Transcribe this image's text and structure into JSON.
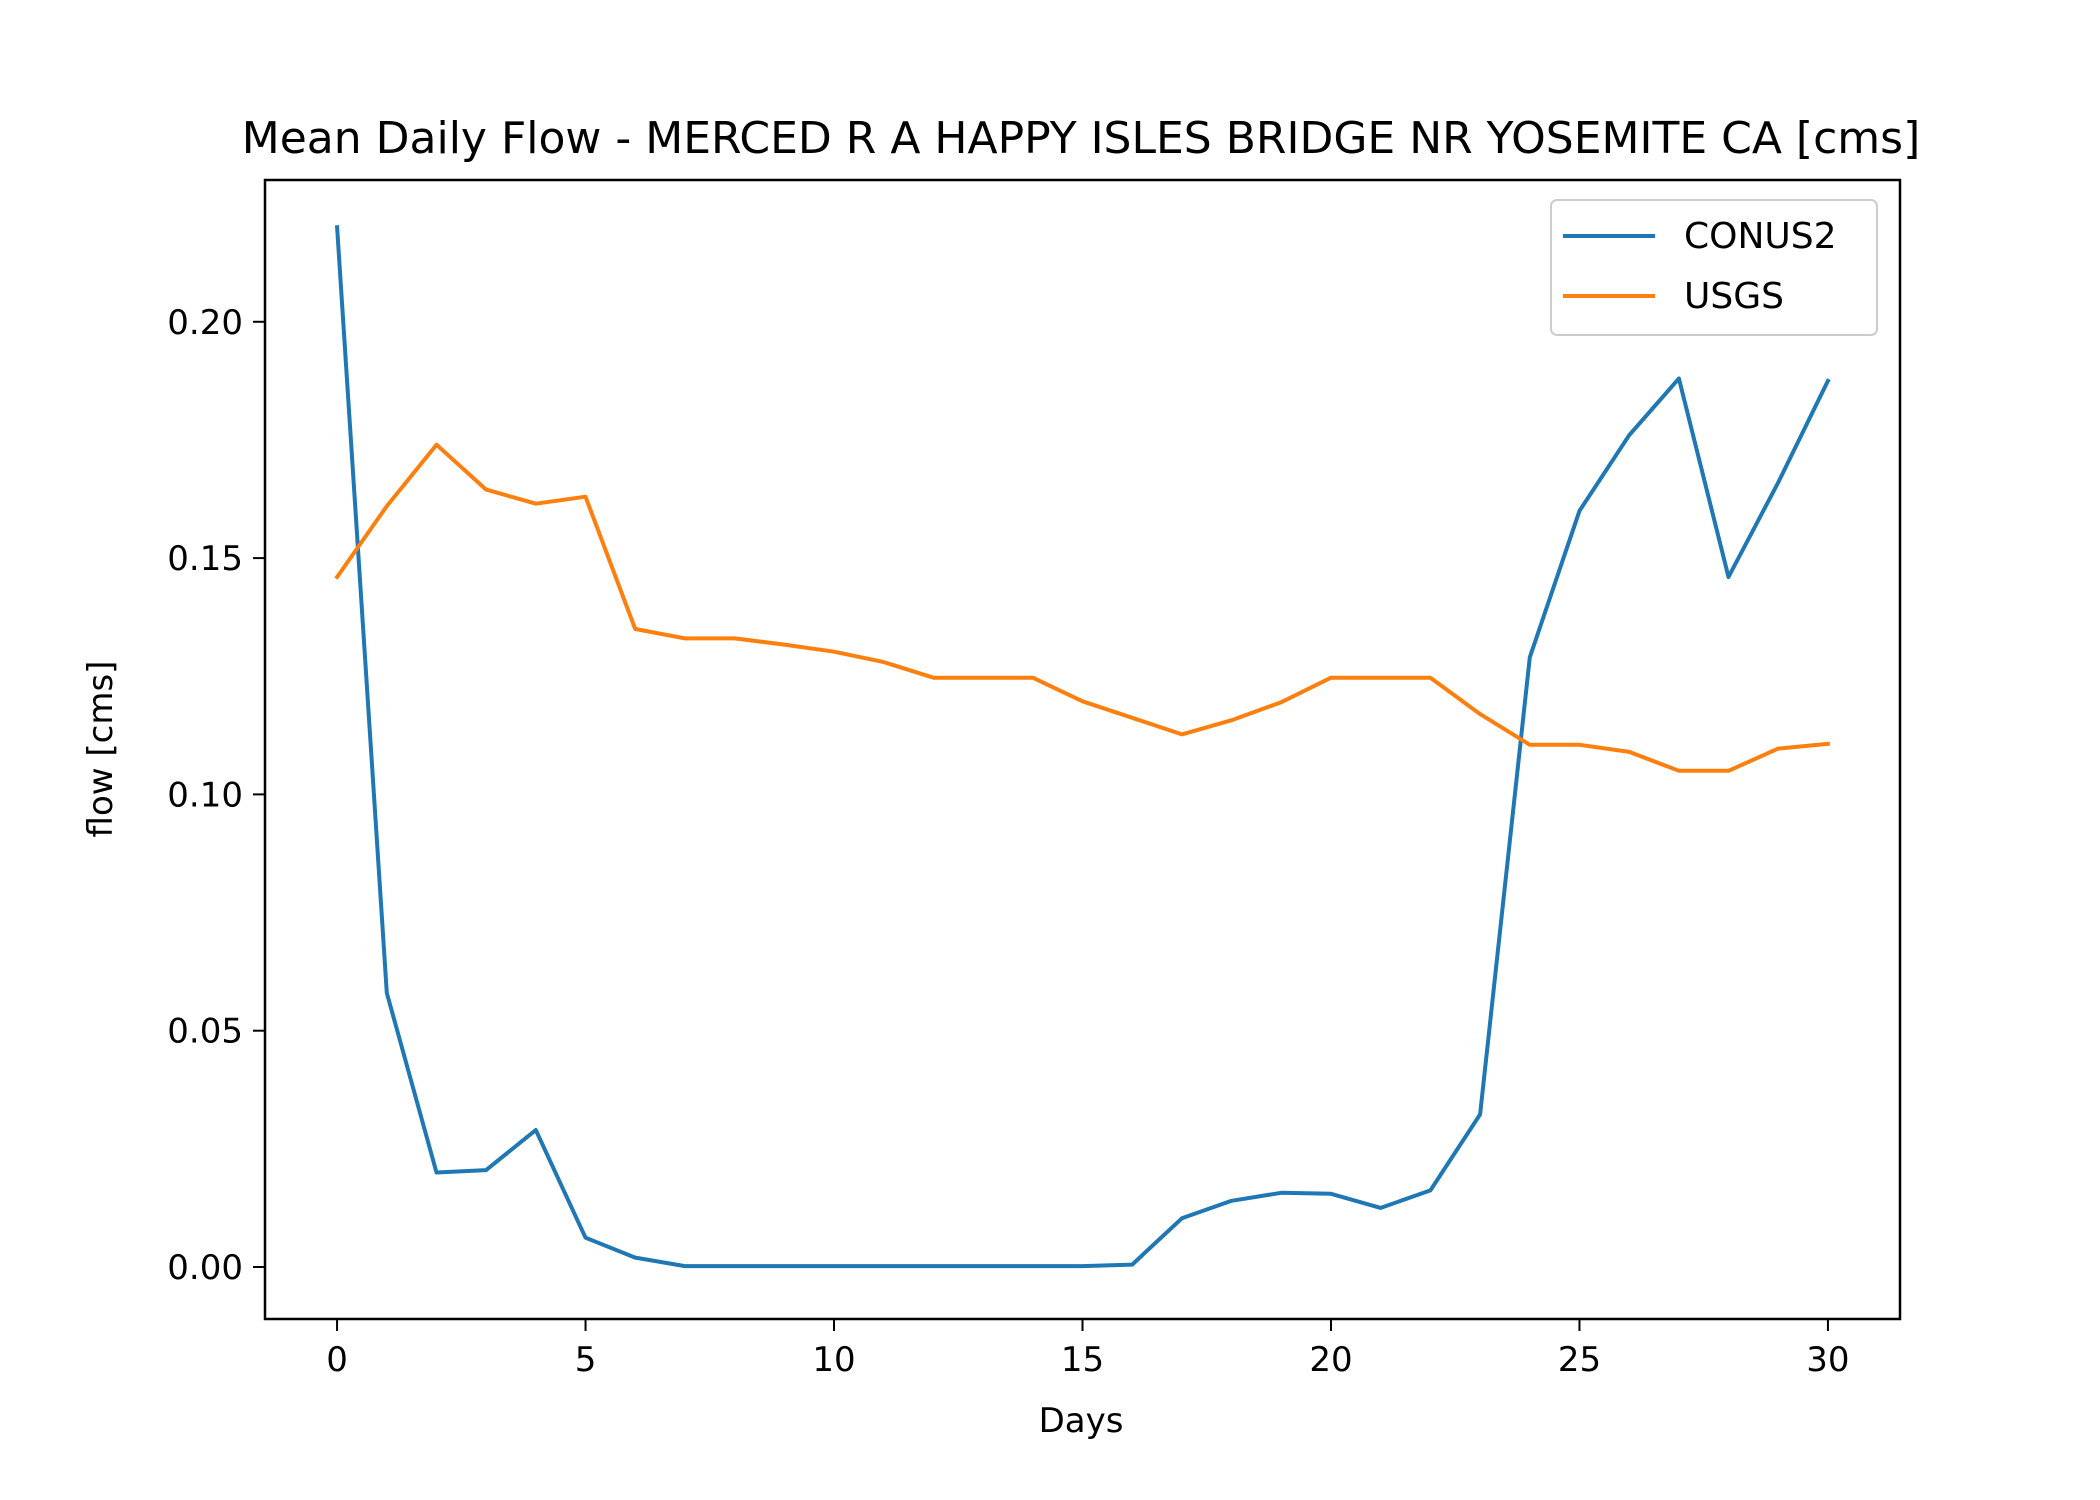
{
  "chart_data": {
    "type": "line",
    "title": "Mean Daily Flow - MERCED R A HAPPY ISLES BRIDGE NR YOSEMITE CA [cms]",
    "xlabel": "Days",
    "ylabel": "flow [cms]",
    "xlim": [
      -1.45,
      31.45
    ],
    "ylim": [
      -0.011,
      0.23
    ],
    "xticks": [
      0,
      5,
      10,
      15,
      20,
      25,
      30
    ],
    "xtick_labels": [
      "0",
      "5",
      "10",
      "15",
      "20",
      "25",
      "30"
    ],
    "yticks": [
      0.0,
      0.05,
      0.1,
      0.15,
      0.2
    ],
    "ytick_labels": [
      "0.00",
      "0.05",
      "0.10",
      "0.15",
      "0.20"
    ],
    "grid": false,
    "legend_position": "top-right",
    "x": [
      0,
      1,
      2,
      3,
      4,
      5,
      6,
      7,
      8,
      9,
      10,
      11,
      12,
      13,
      14,
      15,
      16,
      17,
      18,
      19,
      20,
      21,
      22,
      23,
      24,
      25,
      26,
      27,
      28,
      29,
      30
    ],
    "series": [
      {
        "name": "CONUS2",
        "color": "#1f77b4",
        "values": [
          0.22,
          0.058,
          0.02,
          0.0205,
          0.029,
          0.0062,
          0.002,
          0.0002,
          0.0002,
          0.0002,
          0.0002,
          0.0002,
          0.0002,
          0.0002,
          0.0002,
          0.0002,
          0.0005,
          0.0103,
          0.014,
          0.0157,
          0.0155,
          0.0125,
          0.0162,
          0.0323,
          0.129,
          0.16,
          0.176,
          0.188,
          0.146,
          0.166,
          0.1875
        ]
      },
      {
        "name": "USGS",
        "color": "#ff7f0e",
        "values": [
          0.146,
          0.161,
          0.174,
          0.1645,
          0.1615,
          0.163,
          0.135,
          0.133,
          0.133,
          0.1317,
          0.1302,
          0.128,
          0.1247,
          0.1247,
          0.1247,
          0.1197,
          0.1162,
          0.1127,
          0.1157,
          0.1195,
          0.1247,
          0.1247,
          0.1247,
          0.117,
          0.1105,
          0.1105,
          0.109,
          0.105,
          0.105,
          0.1097,
          0.1107
        ]
      }
    ]
  }
}
